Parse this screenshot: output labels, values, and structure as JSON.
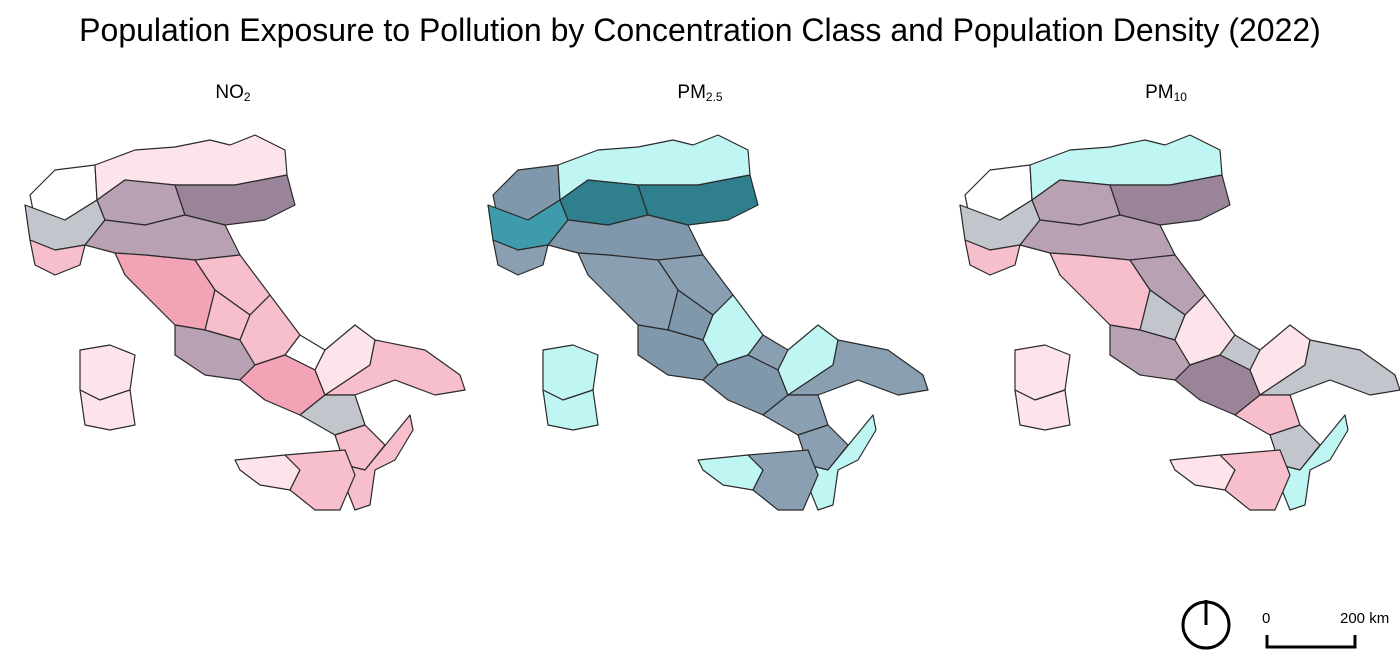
{
  "title": "Population Exposure to Pollution by Concentration Class and Population Density (2022)",
  "panels": [
    {
      "id": "no2",
      "base": "NO",
      "sub": "2"
    },
    {
      "id": "pm25",
      "base": "PM",
      "sub": "2.5"
    },
    {
      "id": "pm10",
      "base": "PM",
      "sub": "10"
    }
  ],
  "scale_bar": {
    "start_label": "0",
    "end_label": "200 km"
  },
  "north_arrow": {
    "icon": "north-arrow-icon"
  },
  "palette": {
    "pink_light": "#fde4ea",
    "pink": "#f7bfcc",
    "pink_dark": "#f2a3b5",
    "mauve": "#b7a1b3",
    "mauve_dark": "#9a8499",
    "grey": "#c2c6cc",
    "slate": "#8aa0b2",
    "blue_grey": "#7f98ab",
    "teal_light": "#bff6f4",
    "teal": "#3d9bab",
    "teal_dark": "#2f7f8f",
    "white": "#ffffff",
    "outline": "#2a2a2a"
  }
}
